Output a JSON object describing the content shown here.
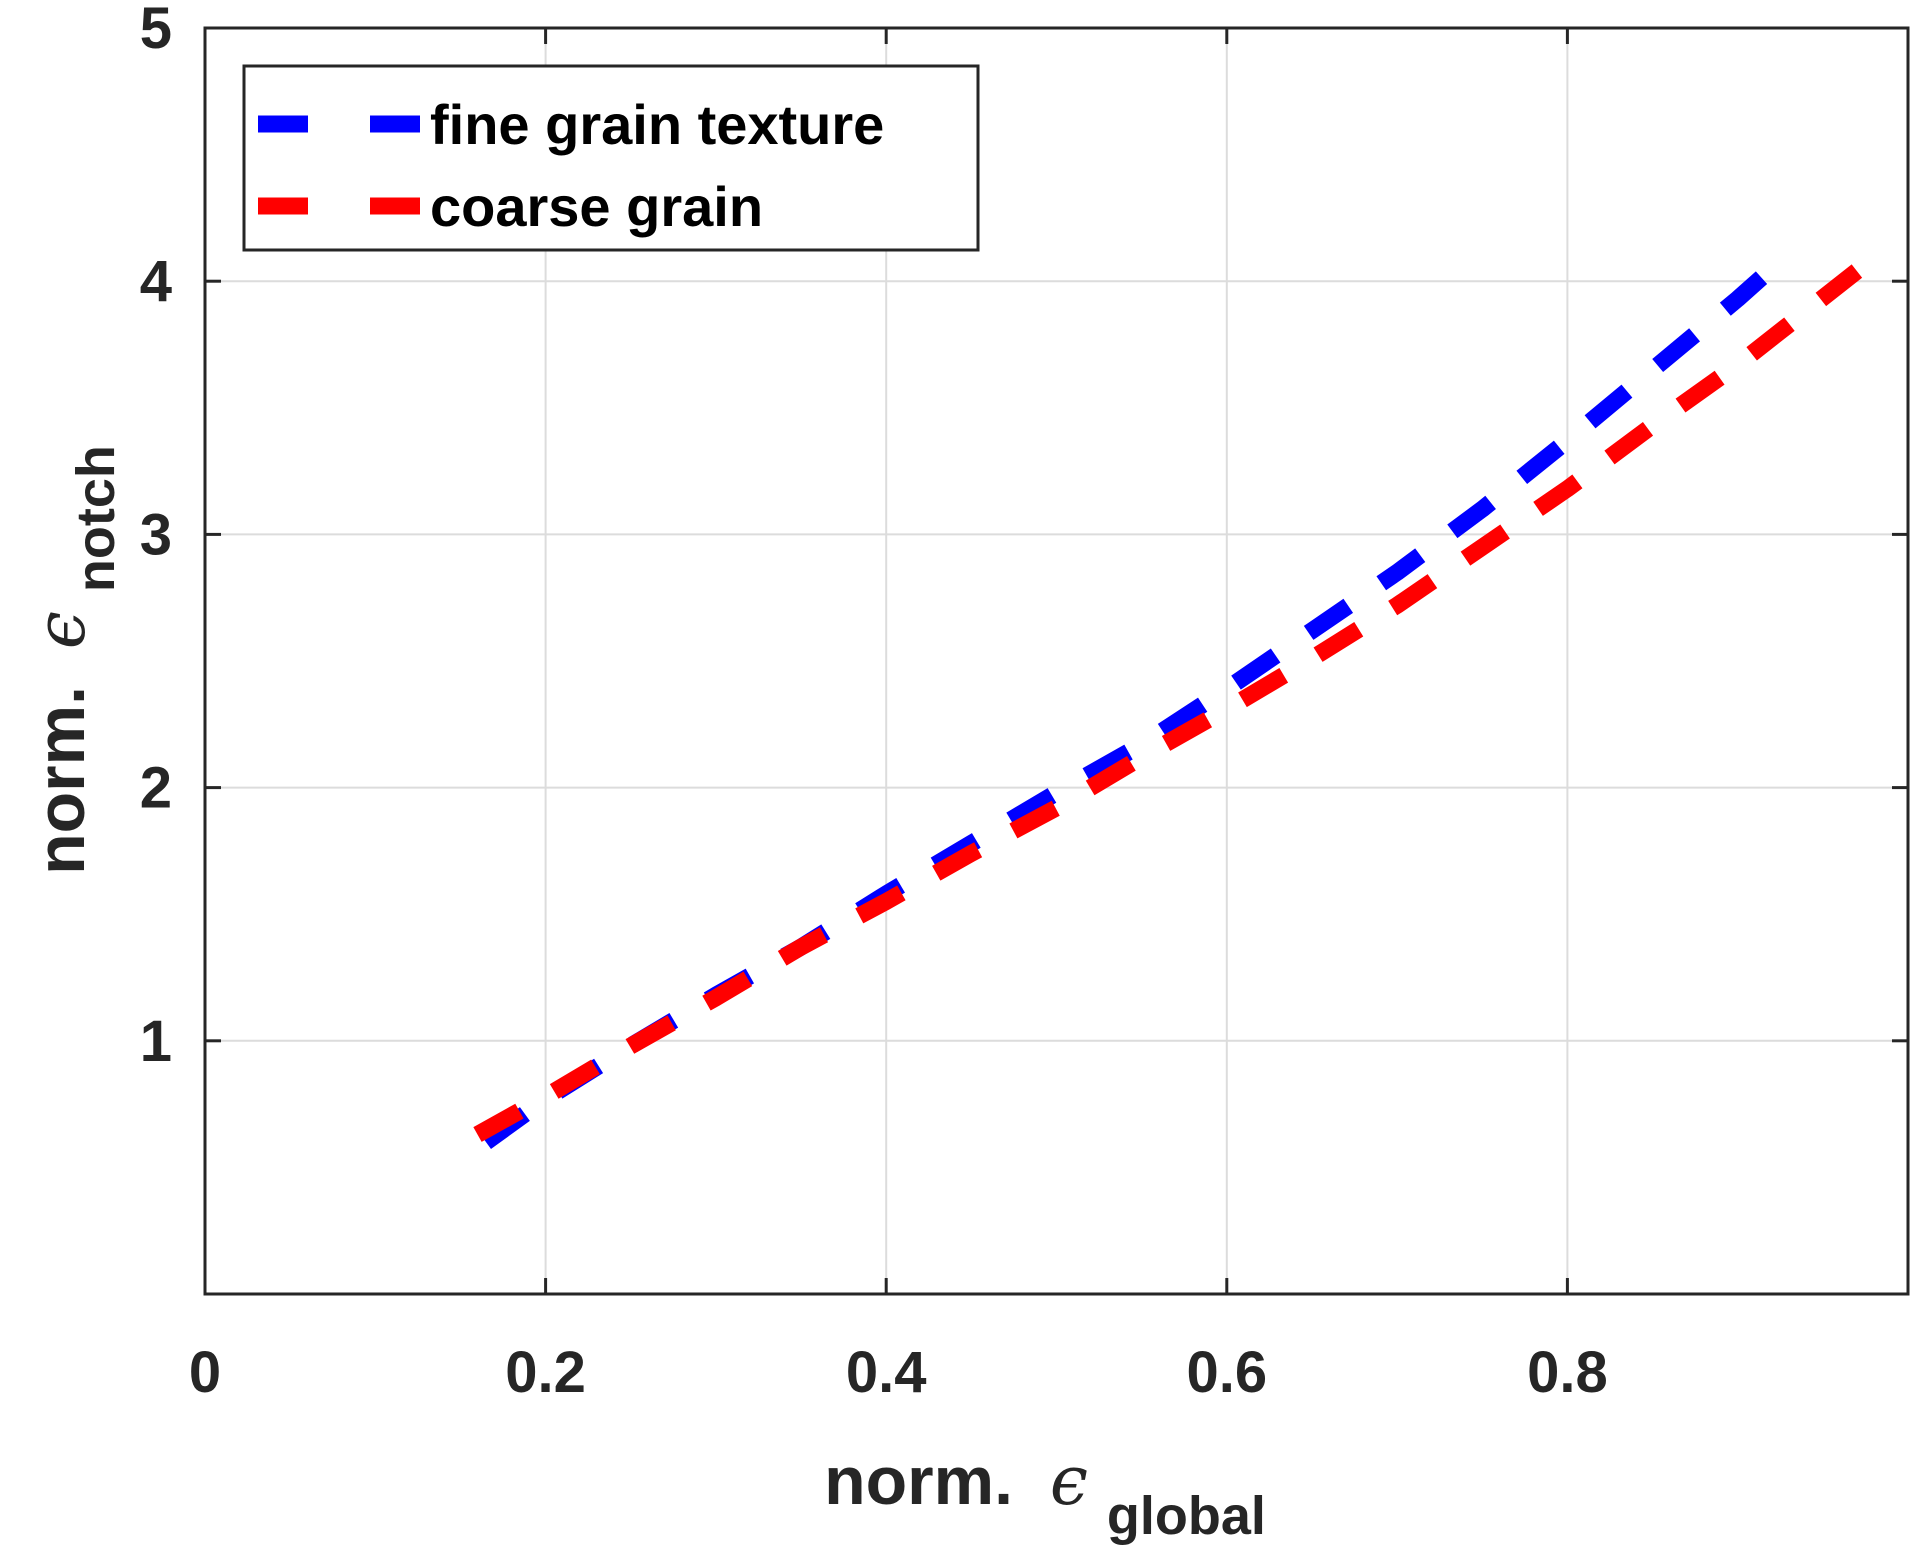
{
  "chart_data": {
    "type": "line",
    "title": "",
    "xlabel": {
      "prefix": "norm.",
      "symbol": "ϵ",
      "subscript": "global"
    },
    "ylabel": {
      "prefix": "norm.",
      "symbol": "ϵ",
      "subscript": "notch"
    },
    "xlim": [
      0,
      1
    ],
    "ylim": [
      0,
      5
    ],
    "xticks": [
      {
        "value": 0,
        "label": "0"
      },
      {
        "value": 0.2,
        "label": "0.2"
      },
      {
        "value": 0.4,
        "label": "0.4"
      },
      {
        "value": 0.6,
        "label": "0.6"
      },
      {
        "value": 0.8,
        "label": "0.8"
      }
    ],
    "yticks": [
      {
        "value": 1,
        "label": "1"
      },
      {
        "value": 2,
        "label": "2"
      },
      {
        "value": 3,
        "label": "3"
      },
      {
        "value": 4,
        "label": "4"
      },
      {
        "value": 5,
        "label": "5"
      }
    ],
    "grid": true,
    "legend_position": "top-left",
    "series": [
      {
        "name": "fine grain texture",
        "color": "#0000ff",
        "style": "dashed",
        "x": [
          0.165,
          0.2,
          0.25,
          0.3,
          0.35,
          0.4,
          0.45,
          0.5,
          0.55,
          0.6,
          0.65,
          0.7,
          0.75,
          0.8,
          0.85,
          0.9,
          0.925
        ],
        "y": [
          0.6,
          0.77,
          0.98,
          1.18,
          1.37,
          1.58,
          1.78,
          1.98,
          2.17,
          2.39,
          2.62,
          2.85,
          3.1,
          3.37,
          3.65,
          3.93,
          4.08
        ]
      },
      {
        "name": "coarse grain",
        "color": "#ff0000",
        "style": "dashed",
        "x": [
          0.16,
          0.2,
          0.25,
          0.3,
          0.35,
          0.4,
          0.45,
          0.5,
          0.55,
          0.6,
          0.65,
          0.7,
          0.75,
          0.8,
          0.85,
          0.9,
          0.97
        ],
        "y": [
          0.63,
          0.78,
          0.98,
          1.17,
          1.37,
          1.55,
          1.74,
          1.92,
          2.12,
          2.31,
          2.51,
          2.72,
          2.95,
          3.18,
          3.43,
          3.67,
          4.04
        ]
      }
    ]
  }
}
